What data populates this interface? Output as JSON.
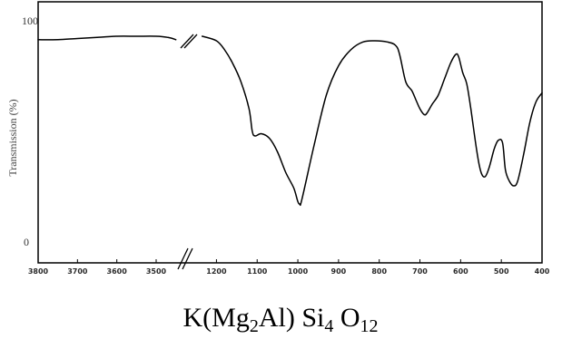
{
  "chart_data": {
    "type": "line",
    "title": "",
    "ylabel": "Transmission (%)",
    "xlabel": "",
    "ylim": [
      0,
      100
    ],
    "y_ticks": [
      "100",
      "0"
    ],
    "x_axis_break": "between 3500 and 1200",
    "x_segment_high": {
      "ticks": [
        "3800",
        "3700",
        "3600",
        "3500"
      ],
      "xlim": [
        3800,
        3440
      ]
    },
    "x_segment_low": {
      "ticks": [
        "1200",
        "1100",
        "1000",
        "900",
        "800",
        "700",
        "600",
        "500",
        "400"
      ],
      "xlim": [
        1250,
        400
      ]
    },
    "series": [
      {
        "segment": "high",
        "x": [
          3800,
          3750,
          3700,
          3650,
          3600,
          3550,
          3500,
          3470,
          3450
        ],
        "y": [
          90.5,
          90.5,
          91,
          91.5,
          92,
          92,
          92,
          91.5,
          90.5
        ]
      },
      {
        "segment": "low",
        "x": [
          1235,
          1200,
          1180,
          1160,
          1140,
          1120,
          1112,
          1105,
          1090,
          1070,
          1050,
          1030,
          1010,
          1000,
          995,
          990,
          960,
          930,
          900,
          870,
          840,
          810,
          780,
          760,
          750,
          735,
          720,
          710,
          700,
          690,
          683,
          670,
          655,
          640,
          625,
          612,
          605,
          595,
          585,
          575,
          560,
          550,
          540,
          530,
          518,
          508,
          497,
          490,
          480,
          470,
          460,
          445,
          430,
          415,
          400
        ],
        "y": [
          92,
          90,
          86,
          80,
          72,
          60,
          50,
          48,
          49,
          47,
          41,
          32,
          25,
          19,
          18,
          20,
          44,
          66,
          79,
          86,
          89.5,
          90,
          89.5,
          88,
          84,
          72,
          68,
          64,
          60,
          57.5,
          58,
          62,
          66,
          73,
          80,
          84,
          83,
          76,
          71,
          60,
          41,
          32,
          30,
          34,
          42,
          46,
          45,
          33,
          28,
          26,
          28,
          40,
          54,
          63,
          67
        ]
      }
    ]
  },
  "caption": {
    "prefix": "K(Mg",
    "sub1": "2",
    "mid": "Al) Si",
    "sub2": "4",
    "mid2": " O",
    "sub3": "12"
  }
}
